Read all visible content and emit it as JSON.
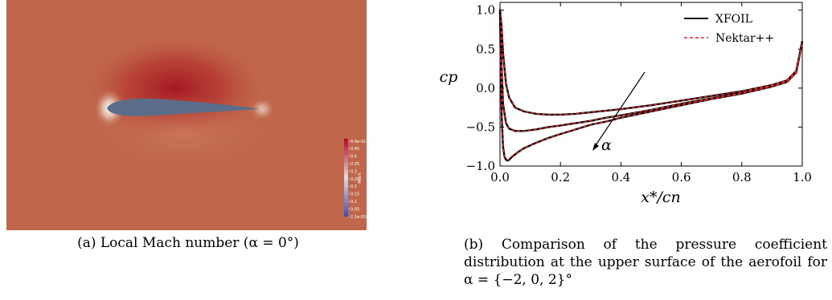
{
  "figure_a": {
    "caption": "(a) Local Mach number (α = 0°)",
    "colorbar": {
      "title": "Mach",
      "ticks": [
        "4.9e-01",
        "0.45",
        "0.4",
        "0.35",
        "0.3",
        "0.25",
        "0.2",
        "0.15",
        "0.1",
        "0.05",
        "2.1e-03"
      ],
      "colors": {
        "high": "#b40426",
        "mid": "#dddddd",
        "low": "#3b4cc0",
        "field": "#c0674b",
        "airfoil": "#5a6e8c"
      }
    }
  },
  "figure_b": {
    "caption": "(b) Comparison of the pressure coefficient distribution at the upper surface of the aerofoil for α = {−2, 0, 2}°",
    "alpha_label": "α",
    "chart_data": {
      "type": "line",
      "xlabel": "x*/cn",
      "ylabel": "cp",
      "xlim": [
        0.0,
        1.0
      ],
      "ylim": [
        -1.0,
        1.1
      ],
      "xticks": [
        "0.0",
        "0.2",
        "0.4",
        "0.6",
        "0.8",
        "1.0"
      ],
      "yticks": [
        "−1.0",
        "−0.5",
        "0.0",
        "0.5",
        "1.0"
      ],
      "legend": {
        "placement": "top-right",
        "entries": [
          "XFOIL",
          "Nektar++"
        ]
      },
      "series": [
        {
          "name": "XFOIL",
          "alpha": -2,
          "color": "#000000",
          "x": [
            0.0,
            0.005,
            0.01,
            0.02,
            0.03,
            0.05,
            0.08,
            0.12,
            0.16,
            0.2,
            0.25,
            0.3,
            0.35,
            0.4,
            0.5,
            0.6,
            0.7,
            0.8,
            0.9,
            0.95,
            0.98,
            1.0
          ],
          "y": [
            1.0,
            0.8,
            0.45,
            0.05,
            -0.12,
            -0.25,
            -0.3,
            -0.33,
            -0.34,
            -0.34,
            -0.33,
            -0.31,
            -0.29,
            -0.27,
            -0.22,
            -0.16,
            -0.1,
            -0.04,
            0.04,
            0.1,
            0.22,
            0.6
          ]
        },
        {
          "name": "XFOIL",
          "alpha": 0,
          "color": "#000000",
          "x": [
            0.0,
            0.005,
            0.01,
            0.02,
            0.03,
            0.05,
            0.08,
            0.12,
            0.16,
            0.2,
            0.25,
            0.3,
            0.35,
            0.4,
            0.5,
            0.6,
            0.7,
            0.8,
            0.9,
            0.95,
            0.98,
            1.0
          ],
          "y": [
            1.0,
            0.3,
            -0.2,
            -0.45,
            -0.52,
            -0.55,
            -0.55,
            -0.53,
            -0.5,
            -0.48,
            -0.45,
            -0.42,
            -0.38,
            -0.35,
            -0.28,
            -0.2,
            -0.13,
            -0.06,
            0.03,
            0.09,
            0.2,
            0.6
          ]
        },
        {
          "name": "XFOIL",
          "alpha": 2,
          "color": "#000000",
          "x": [
            0.0,
            0.003,
            0.006,
            0.01,
            0.015,
            0.02,
            0.025,
            0.03,
            0.04,
            0.06,
            0.08,
            0.12,
            0.16,
            0.2,
            0.25,
            0.3,
            0.35,
            0.4,
            0.5,
            0.6,
            0.7,
            0.8,
            0.9,
            0.95,
            0.98,
            1.0
          ],
          "y": [
            1.0,
            0.2,
            -0.4,
            -0.75,
            -0.88,
            -0.92,
            -0.93,
            -0.92,
            -0.88,
            -0.82,
            -0.77,
            -0.7,
            -0.64,
            -0.59,
            -0.53,
            -0.47,
            -0.43,
            -0.38,
            -0.3,
            -0.22,
            -0.14,
            -0.07,
            0.02,
            0.08,
            0.2,
            0.6
          ]
        },
        {
          "name": "Nektar++",
          "alpha": -2,
          "color": "#e8262b",
          "x": [
            0.0,
            0.005,
            0.01,
            0.02,
            0.03,
            0.05,
            0.08,
            0.12,
            0.16,
            0.2,
            0.25,
            0.3,
            0.35,
            0.4,
            0.5,
            0.6,
            0.7,
            0.8,
            0.9,
            0.95,
            0.98,
            1.0
          ],
          "y": [
            1.02,
            0.8,
            0.45,
            0.05,
            -0.12,
            -0.25,
            -0.3,
            -0.33,
            -0.34,
            -0.34,
            -0.33,
            -0.31,
            -0.29,
            -0.27,
            -0.22,
            -0.16,
            -0.1,
            -0.04,
            0.04,
            0.1,
            0.22,
            0.6
          ]
        },
        {
          "name": "Nektar++",
          "alpha": 0,
          "color": "#e8262b",
          "x": [
            0.0,
            0.005,
            0.01,
            0.02,
            0.03,
            0.05,
            0.08,
            0.12,
            0.16,
            0.2,
            0.25,
            0.3,
            0.35,
            0.4,
            0.5,
            0.6,
            0.7,
            0.8,
            0.9,
            0.95,
            0.98,
            1.0
          ],
          "y": [
            1.02,
            0.3,
            -0.2,
            -0.45,
            -0.52,
            -0.55,
            -0.55,
            -0.53,
            -0.5,
            -0.48,
            -0.45,
            -0.42,
            -0.38,
            -0.35,
            -0.28,
            -0.2,
            -0.13,
            -0.06,
            0.03,
            0.09,
            0.2,
            0.6
          ]
        },
        {
          "name": "Nektar++",
          "alpha": 2,
          "color": "#e8262b",
          "x": [
            0.0,
            0.003,
            0.006,
            0.01,
            0.015,
            0.02,
            0.025,
            0.03,
            0.04,
            0.06,
            0.08,
            0.12,
            0.16,
            0.2,
            0.25,
            0.3,
            0.35,
            0.4,
            0.5,
            0.6,
            0.7,
            0.8,
            0.9,
            0.95,
            0.98,
            1.0
          ],
          "y": [
            1.02,
            0.2,
            -0.4,
            -0.75,
            -0.87,
            -0.91,
            -0.92,
            -0.91,
            -0.87,
            -0.82,
            -0.77,
            -0.7,
            -0.64,
            -0.59,
            -0.53,
            -0.47,
            -0.43,
            -0.38,
            -0.3,
            -0.22,
            -0.14,
            -0.07,
            0.02,
            0.08,
            0.2,
            0.6
          ]
        }
      ]
    }
  }
}
